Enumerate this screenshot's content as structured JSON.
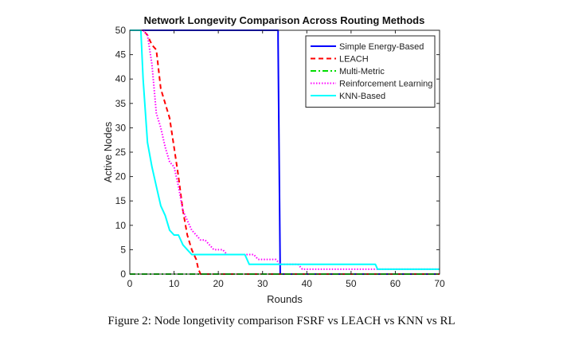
{
  "chart_data": {
    "type": "line",
    "title": "Network Longevity Comparison Across Routing Methods",
    "xlabel": "Rounds",
    "ylabel": "Active Nodes",
    "xlim": [
      0,
      70
    ],
    "ylim": [
      0,
      50
    ],
    "xticks": [
      0,
      10,
      20,
      30,
      40,
      50,
      60,
      70
    ],
    "yticks": [
      0,
      5,
      10,
      15,
      20,
      25,
      30,
      35,
      40,
      45,
      50
    ],
    "grid": false,
    "legend_position": "top-right",
    "series": [
      {
        "name": "Simple Energy-Based",
        "color": "#0000ff",
        "dash": "solid",
        "x": [
          0,
          33.5,
          33.5,
          34,
          70
        ],
        "y": [
          50,
          50,
          48,
          0,
          0
        ]
      },
      {
        "name": "LEACH",
        "color": "#ff0000",
        "dash": "dashed",
        "x": [
          0,
          3,
          4,
          5,
          6,
          7,
          9,
          10,
          11,
          12,
          13,
          14,
          15,
          15.5,
          16,
          70
        ],
        "y": [
          50,
          50,
          49,
          47,
          46,
          38,
          32,
          26,
          20,
          13,
          8,
          5,
          3,
          1,
          0,
          0
        ]
      },
      {
        "name": "Multi-Metric",
        "color": "#00dd00",
        "dash": "dashdot",
        "x": [
          0,
          70
        ],
        "y": [
          0,
          0
        ]
      },
      {
        "name": "Reinforcement Learning",
        "color": "#ff00ff",
        "dash": "dotted",
        "x": [
          0,
          3,
          4,
          5,
          6,
          7,
          8,
          9,
          10,
          11,
          12,
          13,
          14,
          15,
          16,
          17,
          18,
          19,
          20,
          21,
          22,
          26,
          28,
          29,
          30,
          33,
          34,
          36,
          38,
          39,
          40,
          63,
          70
        ],
        "y": [
          50,
          50,
          49,
          43,
          33,
          30,
          26,
          23,
          22,
          18,
          13,
          11,
          9,
          8,
          7,
          7,
          6,
          5,
          5,
          5,
          4,
          4,
          4,
          3,
          3,
          3,
          2,
          2,
          2,
          1,
          1,
          1,
          1
        ]
      },
      {
        "name": "KNN-Based",
        "color": "#00ffff",
        "dash": "solid",
        "x": [
          0,
          2.5,
          3,
          4,
          5,
          6,
          7,
          8,
          9,
          10,
          11,
          12,
          13,
          14,
          23,
          25,
          26,
          27,
          55.5,
          56,
          63,
          70
        ],
        "y": [
          50,
          50,
          40,
          27,
          22,
          18,
          14,
          12,
          9,
          8,
          8,
          6,
          5,
          4,
          4,
          4,
          4,
          2,
          2,
          1,
          1,
          1
        ]
      }
    ]
  },
  "caption": "Figure 2: Node longetivity comparison FSRF vs LEACH vs KNN vs RL"
}
